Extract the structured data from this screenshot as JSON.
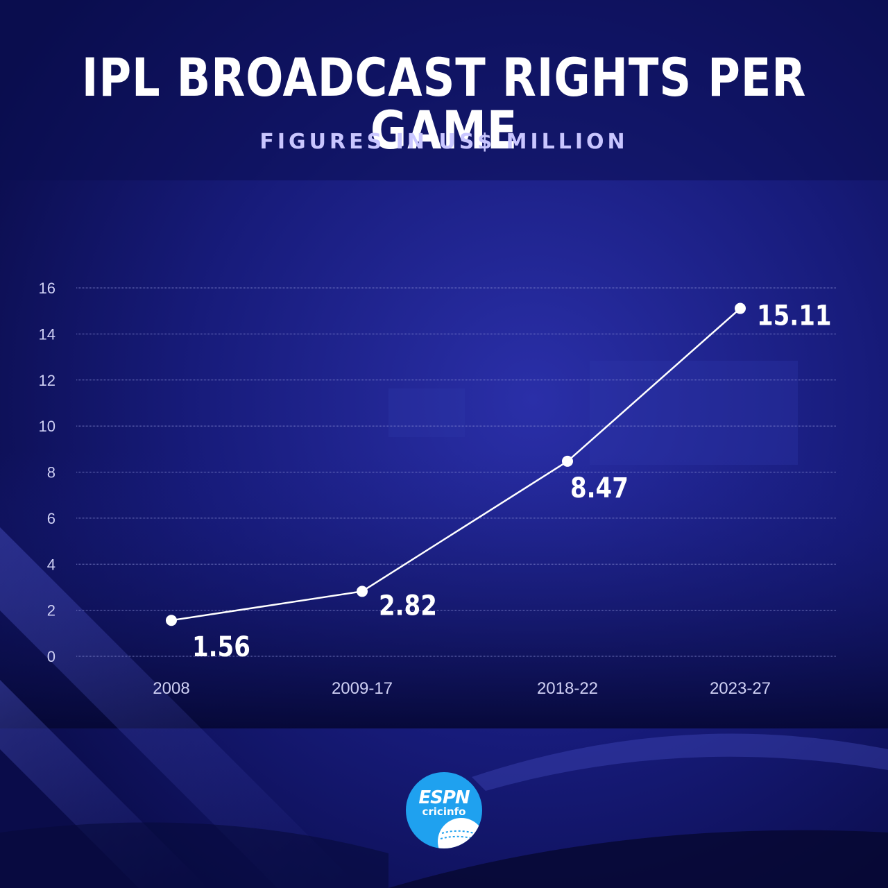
{
  "header": {
    "title": "IPL BROADCAST RIGHTS PER GAME",
    "subtitle": "FIGURES IN US$ MILLION"
  },
  "chart_data": {
    "type": "line",
    "title": "IPL BROADCAST RIGHTS PER GAME",
    "subtitle": "FIGURES IN US$ MILLION",
    "categories": [
      "2008",
      "2009-17",
      "2018-22",
      "2023-27"
    ],
    "series": [
      {
        "values": [
          1.56,
          2.82,
          8.47,
          15.11
        ]
      }
    ],
    "data_labels": [
      "1.56",
      "2.82",
      "8.47",
      "15.11"
    ],
    "y_ticks": [
      "0",
      "2",
      "4",
      "6",
      "8",
      "10",
      "12",
      "14",
      "16"
    ],
    "ylim": [
      0,
      16
    ],
    "grid": true,
    "legend": "none",
    "colors": {
      "line": "#ffffff",
      "grid": "#8a8fd6",
      "tick_label": "#cfd0f4",
      "background": "#0b0e52"
    }
  },
  "logo": {
    "brand": "ESPN",
    "name": "cricinfo",
    "color": "#1fa1ef"
  }
}
